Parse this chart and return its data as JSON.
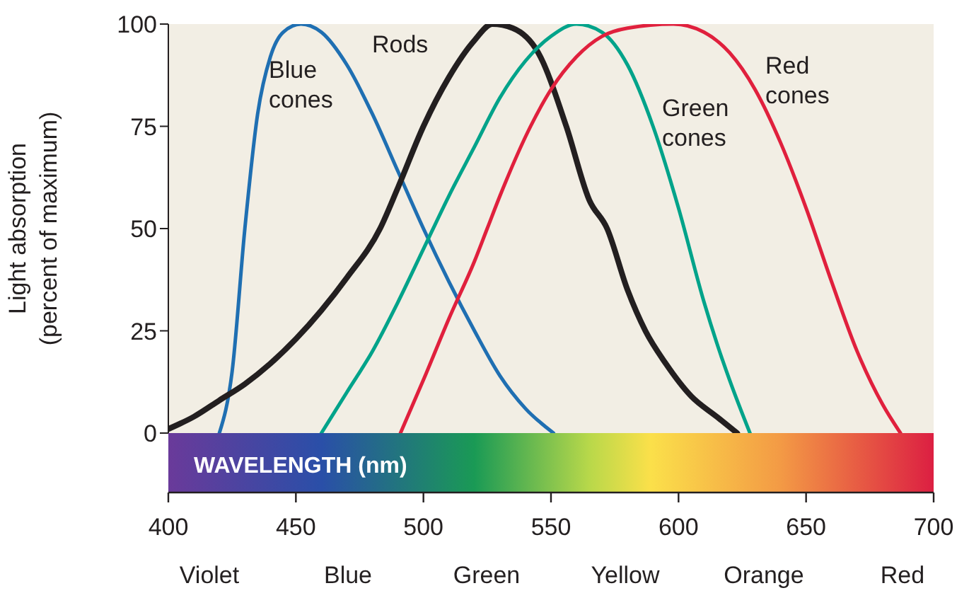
{
  "chart_data": {
    "type": "line",
    "xlabel": "WAVELENGTH (nm)",
    "ylabel": "Light absorption\n(percent of maximum)",
    "xlim": [
      400,
      700
    ],
    "xticks": [
      400,
      450,
      500,
      550,
      600,
      650,
      700
    ],
    "ylim": [
      0,
      100
    ],
    "yticks": [
      0,
      25,
      50,
      75,
      100
    ],
    "grid": false,
    "legend": false,
    "marker": "none",
    "series": [
      {
        "name": "Blue cones",
        "color": "#1f6fb2",
        "x": [
          420,
          425,
          430,
          435,
          440,
          445,
          452,
          460,
          470,
          480,
          490,
          500,
          510,
          520,
          530,
          540,
          551
        ],
        "values": [
          0,
          15,
          50,
          78,
          92,
          98,
          100,
          98,
          90,
          78,
          64,
          50,
          37,
          25,
          14,
          6,
          0
        ]
      },
      {
        "name": "Rods",
        "color": "#231f20",
        "x": [
          400,
          410,
          420,
          430,
          440,
          450,
          460,
          470,
          483,
          490,
          500,
          510,
          520,
          527,
          535,
          545,
          556,
          565,
          572,
          580,
          587,
          595,
          605,
          615,
          623
        ],
        "values": [
          1,
          4,
          8,
          12,
          17,
          23,
          30,
          38,
          50,
          60,
          75,
          87,
          96,
          100,
          99,
          93,
          75,
          57,
          50,
          35,
          25,
          17,
          9,
          4,
          0
        ]
      },
      {
        "name": "Green cones",
        "color": "#00a38a",
        "x": [
          460,
          470,
          480,
          490,
          500,
          510,
          520,
          530,
          540,
          550,
          560,
          570,
          580,
          590,
          600,
          610,
          615,
          620,
          628
        ],
        "values": [
          0,
          10,
          20,
          32,
          45,
          58,
          70,
          82,
          91,
          97,
          100,
          98,
          90,
          75,
          55,
          32,
          22,
          13,
          0
        ]
      },
      {
        "name": "Red cones",
        "color": "#e0203d",
        "x": [
          491,
          500,
          510,
          520,
          525,
          530,
          542,
          550,
          560,
          570,
          580,
          598,
          610,
          620,
          630,
          640,
          650,
          660,
          670,
          680,
          687
        ],
        "values": [
          0,
          13,
          28,
          42,
          50,
          58,
          75,
          84,
          92,
          97,
          99,
          100,
          98,
          93,
          84,
          71,
          55,
          37,
          20,
          7,
          0
        ]
      }
    ],
    "annotations": [
      "Violet",
      "Blue",
      "Green",
      "Yellow",
      "Orange",
      "Red"
    ]
  }
}
